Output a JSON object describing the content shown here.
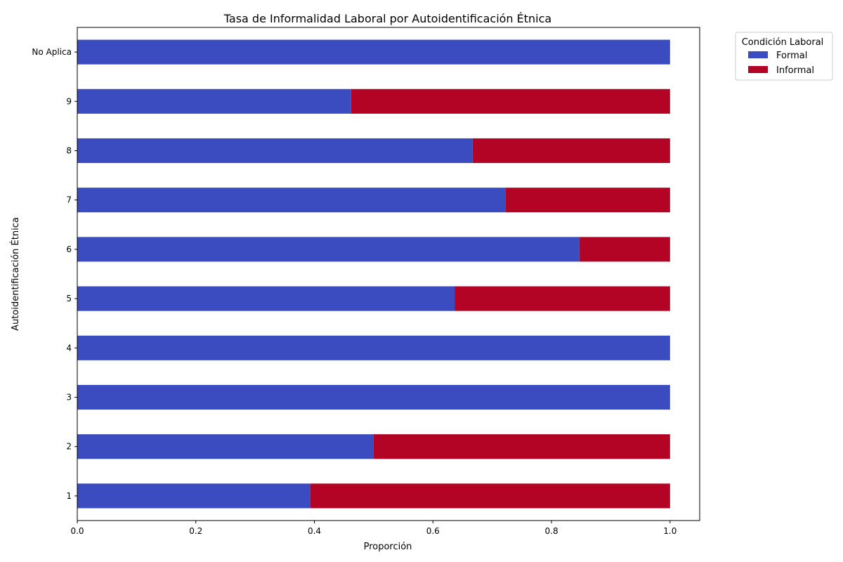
{
  "chart_data": {
    "type": "bar",
    "orientation": "horizontal",
    "stacked": true,
    "title": "Tasa de Informalidad Laboral por Autoidentificación Étnica",
    "xlabel": "Proporción",
    "ylabel": "Autoidentificación Étnica",
    "xlim": [
      0,
      1.05
    ],
    "xticks": [
      "0.0",
      "0.2",
      "0.4",
      "0.6",
      "0.8",
      "1.0"
    ],
    "categories": [
      "1",
      "2",
      "3",
      "4",
      "5",
      "6",
      "7",
      "8",
      "9",
      "No Aplica"
    ],
    "series": [
      {
        "name": "Formal",
        "color": "#3b4cc0",
        "values": [
          0.393,
          0.5,
          1.0,
          1.0,
          0.637,
          0.847,
          0.722,
          0.667,
          0.462,
          1.0
        ]
      },
      {
        "name": "Informal",
        "color": "#b40426",
        "values": [
          0.607,
          0.5,
          0.0,
          0.0,
          0.363,
          0.153,
          0.278,
          0.333,
          0.538,
          0.0
        ]
      }
    ],
    "legend": {
      "title": "Condición Laboral",
      "placement": "outside-top-right"
    },
    "grid": false
  }
}
